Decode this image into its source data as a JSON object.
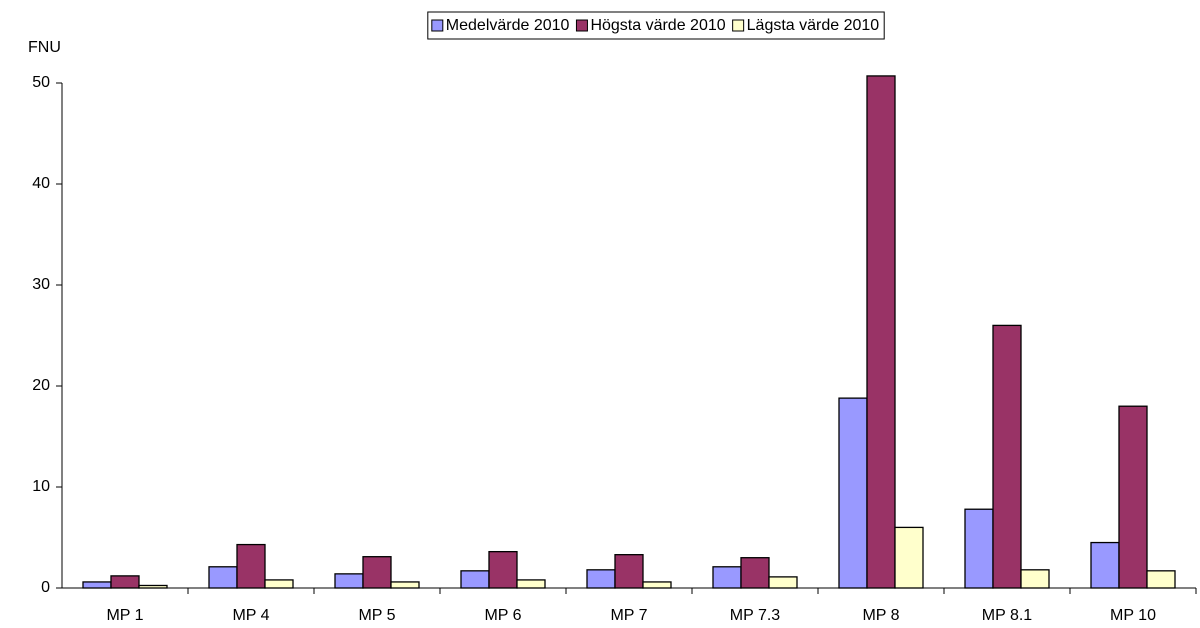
{
  "chart_data": {
    "type": "bar",
    "y_label": "FNU",
    "categories": [
      "MP 1",
      "MP 4",
      "MP 5",
      "MP 6",
      "MP 7",
      "MP 7.3",
      "MP 8",
      "MP 8.1",
      "MP 10"
    ],
    "series": [
      {
        "name": "Medelvärde 2010",
        "color": "#9999ff",
        "values": [
          0.6,
          2.1,
          1.4,
          1.7,
          1.8,
          2.1,
          18.8,
          7.8,
          4.5
        ]
      },
      {
        "name": "Högsta värde 2010",
        "color": "#993366",
        "values": [
          1.2,
          4.3,
          3.1,
          3.6,
          3.3,
          3.0,
          50.7,
          26.0,
          18.0
        ]
      },
      {
        "name": "Lägsta värde 2010",
        "color": "#ffffcc",
        "values": [
          0.25,
          0.8,
          0.6,
          0.8,
          0.6,
          1.1,
          6.0,
          1.8,
          1.7
        ]
      }
    ],
    "ylim": [
      0,
      50
    ],
    "yticks": [
      0,
      10,
      20,
      30,
      40,
      50
    ],
    "legend": "top"
  }
}
